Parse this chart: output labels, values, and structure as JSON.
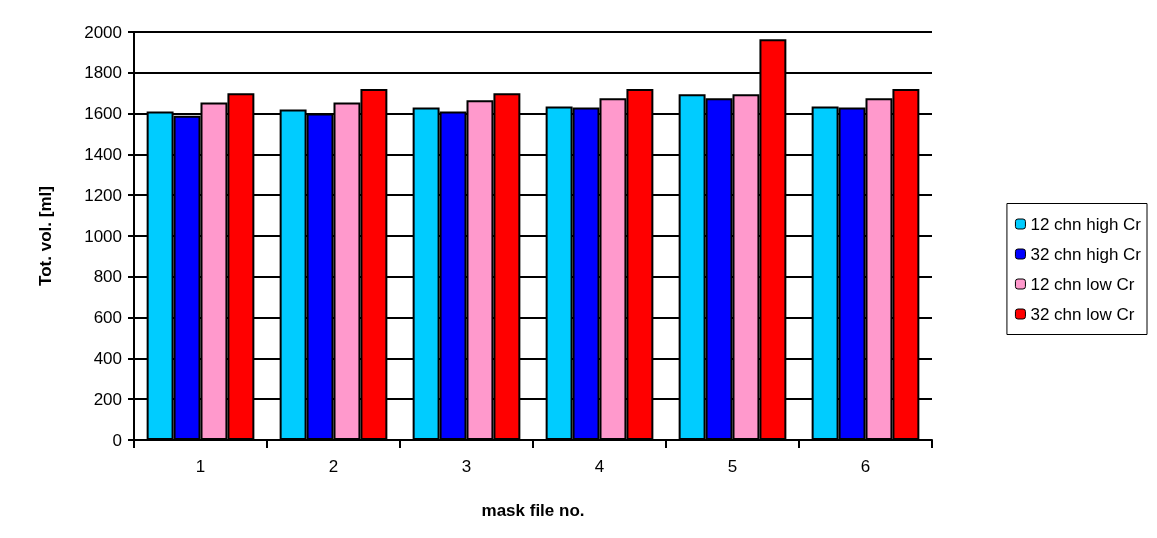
{
  "chart_data": {
    "type": "bar",
    "xlabel": "mask file no.",
    "ylabel": "Tot. vol. [ml]",
    "categories": [
      "1",
      "2",
      "3",
      "4",
      "5",
      "6"
    ],
    "series": [
      {
        "name": "12 chn high Cr",
        "color": "#00ccff",
        "values": [
          1610,
          1620,
          1630,
          1635,
          1695,
          1635
        ]
      },
      {
        "name": "32 chn high Cr",
        "color": "#0000ff",
        "values": [
          1590,
          1600,
          1610,
          1630,
          1675,
          1630
        ]
      },
      {
        "name": "12 chn low Cr",
        "color": "#ff99cc",
        "values": [
          1655,
          1655,
          1665,
          1675,
          1695,
          1675
        ]
      },
      {
        "name": "32 chn low Cr",
        "color": "#ff0000",
        "values": [
          1700,
          1720,
          1700,
          1720,
          1965,
          1720
        ]
      }
    ],
    "ylim": [
      0,
      2000
    ],
    "yticks": [
      0,
      200,
      400,
      600,
      800,
      1000,
      1200,
      1400,
      1600,
      1800,
      2000
    ],
    "grid": "y",
    "legend": "right"
  }
}
